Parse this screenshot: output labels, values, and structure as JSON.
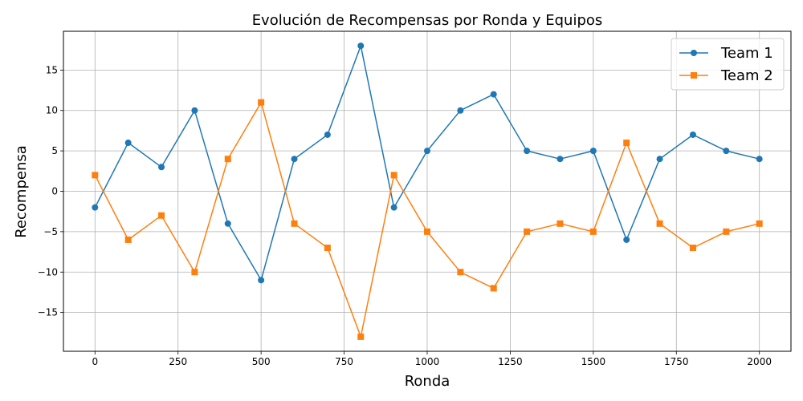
{
  "chart_data": {
    "type": "line",
    "title": "Evolución de Recompensas por Ronda y Equipos",
    "xlabel": "Ronda",
    "ylabel": "Recompensa",
    "xlim": [
      -95,
      2095
    ],
    "ylim": [
      -19.8,
      19.8
    ],
    "xticks": [
      0,
      250,
      500,
      750,
      1000,
      1250,
      1500,
      1750,
      2000
    ],
    "yticks": [
      -15,
      -10,
      -5,
      0,
      5,
      10,
      15
    ],
    "ytick_labels": [
      "−15",
      "−10",
      "−5",
      "0",
      "5",
      "10",
      "15"
    ],
    "grid": true,
    "legend_position": "top-right",
    "x": [
      0,
      100,
      200,
      300,
      400,
      500,
      600,
      700,
      800,
      900,
      1000,
      1100,
      1200,
      1300,
      1400,
      1500,
      1600,
      1700,
      1800,
      1900,
      2000
    ],
    "series": [
      {
        "name": "Team 1",
        "color": "#1f77b4",
        "marker": "circle",
        "values": [
          -2,
          6,
          3,
          10,
          -4,
          -11,
          4,
          7,
          18,
          -2,
          5,
          10,
          12,
          5,
          4,
          5,
          -6,
          4,
          7,
          5,
          4
        ]
      },
      {
        "name": "Team 2",
        "color": "#ff7f0e",
        "marker": "square",
        "values": [
          2,
          -6,
          -3,
          -10,
          4,
          11,
          -4,
          -7,
          -18,
          2,
          -5,
          -10,
          -12,
          -5,
          -4,
          -5,
          6,
          -4,
          -7,
          -5,
          -4
        ]
      }
    ]
  }
}
